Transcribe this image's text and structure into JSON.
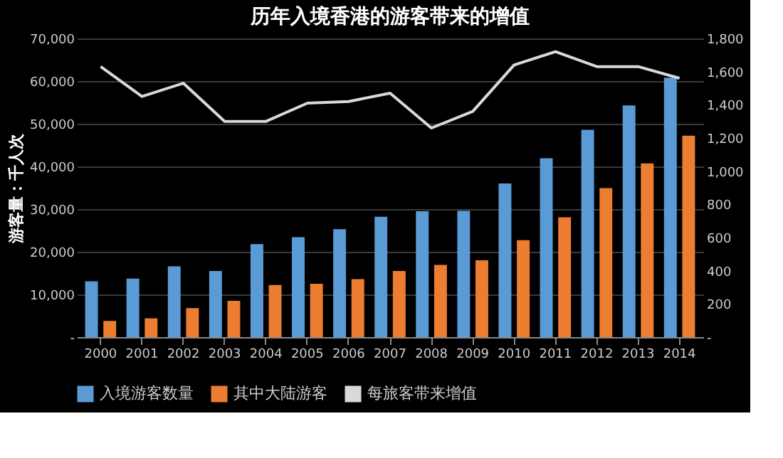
{
  "chart_data": {
    "type": "bar",
    "title": "历年入境香港的游客带来的增值",
    "ylabel": "游客量：千人次",
    "categories": [
      "2000",
      "2001",
      "2002",
      "2003",
      "2004",
      "2005",
      "2006",
      "2007",
      "2008",
      "2009",
      "2010",
      "2011",
      "2012",
      "2013",
      "2014"
    ],
    "series": [
      {
        "name": "入境游客数量",
        "color": "#5b9bd5",
        "values": [
          13100,
          13700,
          16600,
          15500,
          21800,
          23400,
          25300,
          28200,
          29500,
          29600,
          36000,
          41900,
          48600,
          54300,
          60800
        ]
      },
      {
        "name": "其中大陆游客",
        "color": "#ed7d31",
        "values": [
          3800,
          4400,
          6800,
          8500,
          12200,
          12500,
          13600,
          15500,
          16900,
          18000,
          22700,
          28100,
          34900,
          40700,
          47200
        ]
      },
      {
        "name": "每旅客带来增值",
        "color": "#d9d9d9",
        "type": "line",
        "axis": "y2",
        "values": [
          1630,
          1450,
          1530,
          1300,
          1300,
          1410,
          1420,
          1470,
          1260,
          1360,
          1640,
          1720,
          1630,
          1630,
          1560
        ]
      }
    ],
    "ylim": [
      0,
      70000
    ],
    "yticks": [
      {
        "value": 0,
        "label": "-"
      },
      {
        "value": 10000,
        "label": "10,000"
      },
      {
        "value": 20000,
        "label": "20,000"
      },
      {
        "value": 30000,
        "label": "30,000"
      },
      {
        "value": 40000,
        "label": "40,000"
      },
      {
        "value": 50000,
        "label": "50,000"
      },
      {
        "value": 60000,
        "label": "60,000"
      },
      {
        "value": 70000,
        "label": "70,000"
      }
    ],
    "y2lim": [
      0,
      1800
    ],
    "y2ticks": [
      {
        "value": 0,
        "label": "-"
      },
      200,
      400,
      600,
      800,
      {
        "value": 1000,
        "label": "1,000"
      },
      {
        "value": 1200,
        "label": "1,200"
      },
      {
        "value": 1400,
        "label": "1,400"
      },
      {
        "value": 1600,
        "label": "1,600"
      },
      {
        "value": 1800,
        "label": "1,800"
      }
    ],
    "grid": "y",
    "legend": "bottom"
  }
}
